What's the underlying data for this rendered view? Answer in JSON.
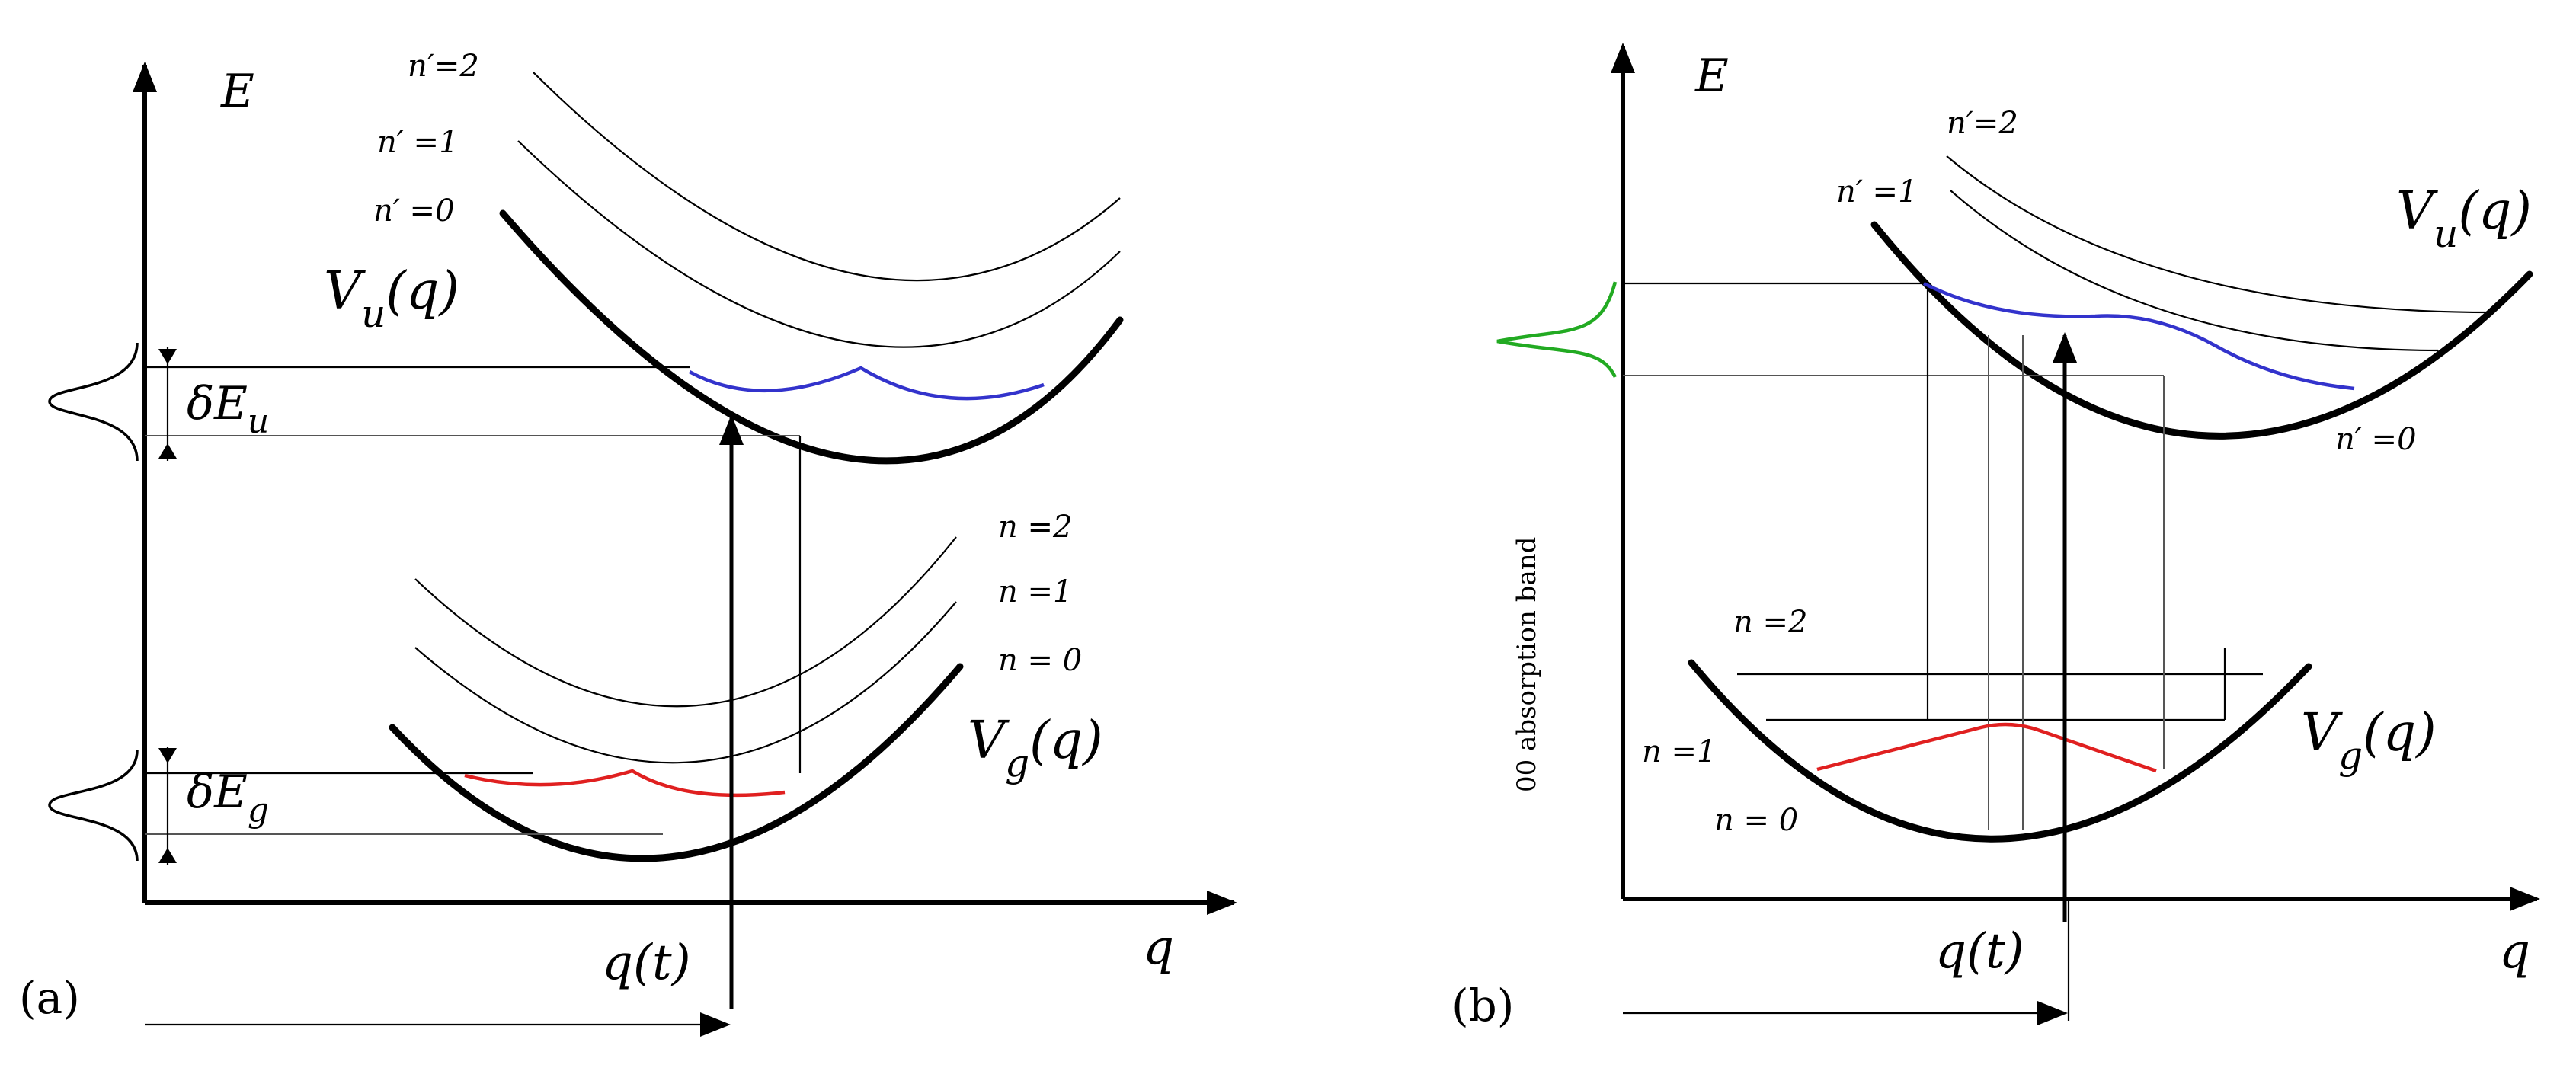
{
  "panel_a": {
    "panel_label": "(a)",
    "axis_e": "E",
    "axis_q": "q",
    "q_of_t": "q(t)",
    "vu": "V",
    "vu_sub": "u",
    "vu_arg": "(q)",
    "vg": "V",
    "vg_sub": "g",
    "vg_arg": "(q)",
    "de_u": "δE",
    "de_u_sub": "u",
    "de_g": "δE",
    "de_g_sub": "g",
    "levels_upper": [
      "n′=2",
      "n′ =1",
      "n′ =0"
    ],
    "levels_lower": [
      "n =2",
      "n =1",
      "n = 0"
    ]
  },
  "panel_b": {
    "panel_label": "(b)",
    "axis_e": "E",
    "axis_q": "q",
    "q_of_t": "q(t)",
    "vu": "V",
    "vu_sub": "u",
    "vu_arg": "(q)",
    "vg": "V",
    "vg_sub": "g",
    "vg_arg": "(q)",
    "band_label": "00  absorption band",
    "levels_upper": [
      "n′=2",
      "n′ =1",
      "n′ =0"
    ],
    "levels_lower": [
      "n =2",
      "n =1",
      "n = 0"
    ]
  },
  "colors": {
    "ground_wavepacket": "#e02020",
    "excited_wavepacket": "#3333cc",
    "absorption_band": "#22aa22"
  }
}
